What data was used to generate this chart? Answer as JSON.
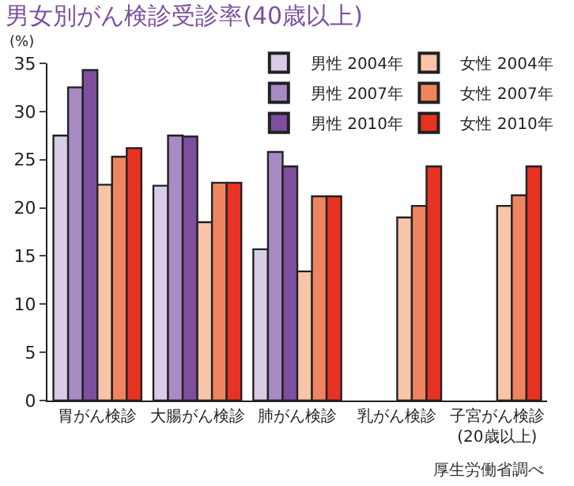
{
  "chart_data": {
    "type": "bar",
    "title": "男女別がん検診受診率(40歳以上)",
    "ylabel": "(%)",
    "categories": [
      "胃がん検診",
      "大腸がん検診",
      "肺がん検診",
      "乳がん検診",
      "子宮がん検診 (20歳以上)"
    ],
    "series": [
      {
        "name": "男性 2004年",
        "color": "#d9cce6",
        "values": [
          27.5,
          22.3,
          15.7,
          null,
          null
        ]
      },
      {
        "name": "男性 2007年",
        "color": "#a98bc4",
        "values": [
          32.5,
          27.5,
          25.8,
          null,
          null
        ]
      },
      {
        "name": "男性 2010年",
        "color": "#7d4f9e",
        "values": [
          34.3,
          27.4,
          24.3,
          null,
          null
        ]
      },
      {
        "name": "女性 2004年",
        "color": "#f8c5a8",
        "values": [
          22.4,
          18.5,
          13.4,
          19.0,
          20.2
        ]
      },
      {
        "name": "女性 2007年",
        "color": "#ef8560",
        "values": [
          25.3,
          22.6,
          21.2,
          20.2,
          21.3
        ]
      },
      {
        "name": "女性 2010年",
        "color": "#e83223",
        "values": [
          26.2,
          22.6,
          21.2,
          24.3,
          24.3
        ]
      }
    ],
    "ylim": [
      0,
      35
    ],
    "yticks": [
      0,
      5,
      10,
      15,
      20,
      25,
      30,
      35
    ],
    "grid": false,
    "legend": "top right",
    "annotations": [
      "厚生労働省調べ"
    ]
  }
}
